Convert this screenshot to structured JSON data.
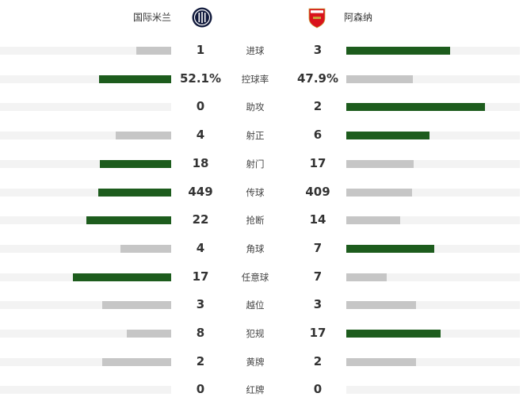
{
  "home": {
    "name": "国际米兰",
    "logo": "inter-milan-logo"
  },
  "away": {
    "name": "阿森纳",
    "logo": "arsenal-logo"
  },
  "colors": {
    "leader": "#1d5c1d",
    "other": "#c6c6c6",
    "track": "#f3f3f3"
  },
  "stats": [
    {
      "label": "进球",
      "home": "1",
      "away": "3",
      "home_value": 1,
      "away_value": 3
    },
    {
      "label": "控球率",
      "home": "52.1%",
      "away": "47.9%",
      "home_value": 52.1,
      "away_value": 47.9
    },
    {
      "label": "助攻",
      "home": "0",
      "away": "2",
      "home_value": 0,
      "away_value": 2
    },
    {
      "label": "射正",
      "home": "4",
      "away": "6",
      "home_value": 4,
      "away_value": 6
    },
    {
      "label": "射门",
      "home": "18",
      "away": "17",
      "home_value": 18,
      "away_value": 17
    },
    {
      "label": "传球",
      "home": "449",
      "away": "409",
      "home_value": 449,
      "away_value": 409
    },
    {
      "label": "抢断",
      "home": "22",
      "away": "14",
      "home_value": 22,
      "away_value": 14
    },
    {
      "label": "角球",
      "home": "4",
      "away": "7",
      "home_value": 4,
      "away_value": 7
    },
    {
      "label": "任意球",
      "home": "17",
      "away": "7",
      "home_value": 17,
      "away_value": 7
    },
    {
      "label": "越位",
      "home": "3",
      "away": "3",
      "home_value": 3,
      "away_value": 3
    },
    {
      "label": "犯规",
      "home": "8",
      "away": "17",
      "home_value": 8,
      "away_value": 17
    },
    {
      "label": "黄牌",
      "home": "2",
      "away": "2",
      "home_value": 2,
      "away_value": 2
    },
    {
      "label": "红牌",
      "home": "0",
      "away": "0",
      "home_value": 0,
      "away_value": 0
    }
  ]
}
